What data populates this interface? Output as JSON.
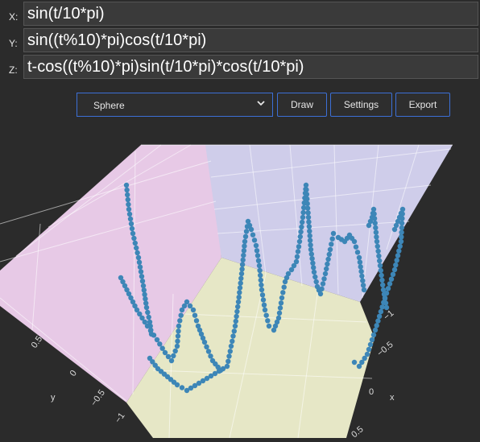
{
  "expressions": {
    "x": {
      "label": "X:",
      "value": "sin(t/10*pi)"
    },
    "y": {
      "label": "Y:",
      "value": "sin((t%10)*pi)cos(t/10*pi)"
    },
    "z": {
      "label": "Z:",
      "value": "t-cos((t%10)*pi)sin(t/10*pi)*cos(t/10*pi)"
    }
  },
  "toolbar": {
    "shape_select": "Sphere",
    "draw_label": "Draw",
    "settings_label": "Settings",
    "export_label": "Export"
  },
  "plot": {
    "x_axis_label": "x",
    "y_axis_label": "y",
    "y_ticks": [
      "0.5",
      "0",
      "−0.5",
      "−1"
    ],
    "x_ticks": [
      "−1",
      "−0.5",
      "0",
      "0.5"
    ],
    "colors": {
      "wall_left": "#e7c9e6",
      "wall_back": "#cfcdea",
      "floor": "#e6e7c6",
      "marker": "#3d86b7"
    }
  }
}
